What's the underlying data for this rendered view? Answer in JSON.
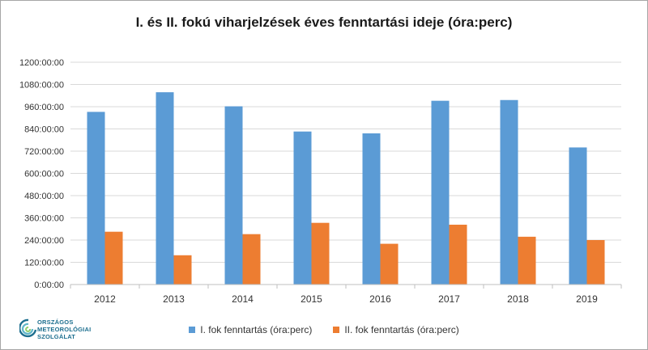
{
  "chart_data": {
    "type": "bar",
    "title": "I. és II. fokú viharjelzések éves fenntartási ideje (óra:perc)",
    "categories": [
      "2012",
      "2013",
      "2014",
      "2015",
      "2016",
      "2017",
      "2018",
      "2019"
    ],
    "series": [
      {
        "name": "I. fok fenntartás (óra:perc)",
        "color": "#5b9bd5",
        "values": [
          932,
          1038,
          962,
          826,
          816,
          992,
          996,
          740
        ]
      },
      {
        "name": "II. fok fenntartás (óra:perc)",
        "color": "#ed7d31",
        "values": [
          285,
          158,
          272,
          333,
          220,
          323,
          258,
          240
        ]
      }
    ],
    "ylim": [
      0,
      1200
    ],
    "yticks": [
      0,
      120,
      240,
      360,
      480,
      600,
      720,
      840,
      960,
      1080,
      1200
    ],
    "ytick_labels": [
      "0:00:00",
      "120:00:00",
      "240:00:00",
      "360:00:00",
      "480:00:00",
      "600:00:00",
      "720:00:00",
      "840:00:00",
      "960:00:00",
      "1080:00:00",
      "1200:00:00"
    ],
    "grid": true,
    "legend_position": "bottom"
  },
  "logo": {
    "name": "logo-icon",
    "lines": [
      "ORSZÁGOS",
      "METEOROLÓGIAI",
      "SZOLGÁLAT"
    ],
    "color": "#1d6f8f"
  }
}
